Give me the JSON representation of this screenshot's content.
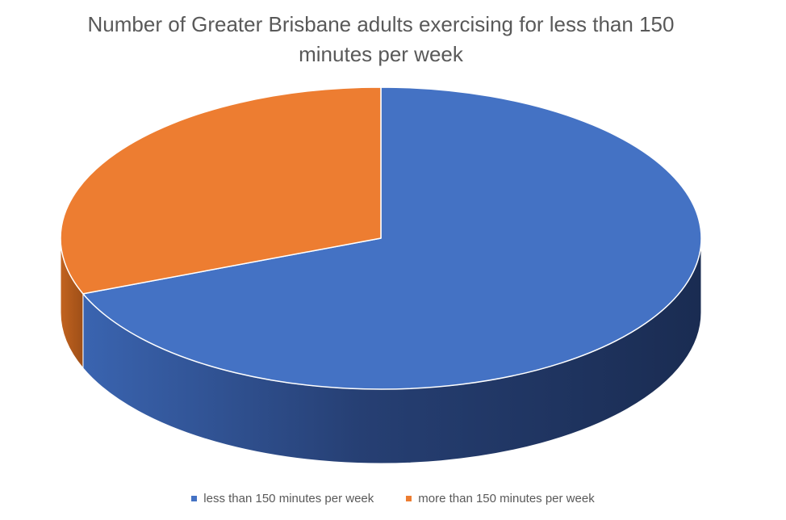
{
  "chart_data": {
    "type": "pie",
    "style": "3d",
    "title_lines": [
      "Number of Greater Brisbane adults exercising for less than 150",
      "minutes per week"
    ],
    "categories": [
      "less than 150 minutes per week",
      "more than 150 minutes per week"
    ],
    "values": [
      69,
      31
    ],
    "colors": [
      "#4472c4",
      "#ed7d31"
    ],
    "legend_position": "bottom"
  }
}
